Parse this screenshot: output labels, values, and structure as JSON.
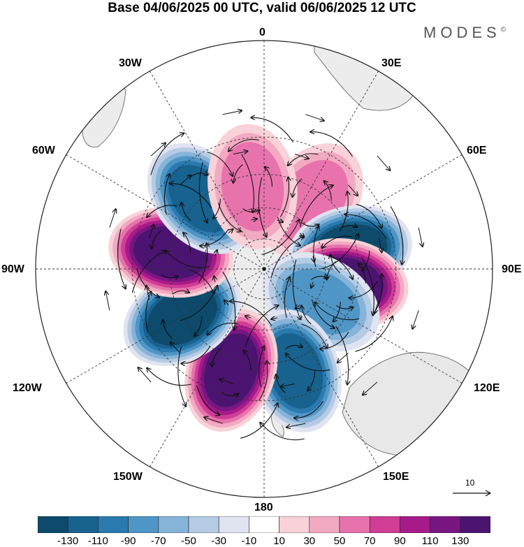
{
  "title": "Base 04/06/2025 00 UTC, valid 06/06/2025 12 UTC",
  "brand": "MODES",
  "brand_mark": "©",
  "longitude_labels": {
    "lon_0": "0",
    "lon_30e": "30E",
    "lon_60e": "60E",
    "lon_90e": "90E",
    "lon_120e": "120E",
    "lon_150e": "150E",
    "lon_180": "180",
    "lon_150w": "150W",
    "lon_120w": "120W",
    "lon_90w": "90W",
    "lon_60w": "60W",
    "lon_30w": "30W"
  },
  "reference_vector": {
    "label": "10"
  },
  "colorbar": {
    "tick_labels": [
      "-130",
      "-110",
      "-90",
      "-70",
      "-50",
      "-30",
      "-10",
      "10",
      "30",
      "50",
      "70",
      "90",
      "110",
      "130"
    ],
    "colors": [
      "#0d4a6b",
      "#17628f",
      "#2a7ab0",
      "#4f96c6",
      "#86b3d8",
      "#b5cbe4",
      "#e0e3f0",
      "#ffffff",
      "#f8d2d8",
      "#f2a9c2",
      "#e873ac",
      "#cf3d95",
      "#a71a89",
      "#781682",
      "#4b1470"
    ]
  },
  "map": {
    "projection": "south polar stereographic",
    "anomaly_centers": [
      {
        "lon": 35,
        "lat": -50,
        "sign": "positive",
        "magnitude": 50
      },
      {
        "lon": 78,
        "lat": -48,
        "sign": "negative",
        "magnitude": 130
      },
      {
        "lon": 100,
        "lat": -50,
        "sign": "positive",
        "magnitude": 130
      },
      {
        "lon": 120,
        "lat": -58,
        "sign": "negative",
        "magnitude": 70
      },
      {
        "lon": 163,
        "lat": -40,
        "sign": "negative",
        "magnitude": 110
      },
      {
        "lon": -162,
        "lat": -40,
        "sign": "positive",
        "magnitude": 130
      },
      {
        "lon": -120,
        "lat": -45,
        "sign": "negative",
        "magnitude": 130
      },
      {
        "lon": -80,
        "lat": -45,
        "sign": "positive",
        "magnitude": 130
      },
      {
        "lon": -42,
        "lat": -45,
        "sign": "negative",
        "magnitude": 110
      },
      {
        "lon": -8,
        "lat": -50,
        "sign": "positive",
        "magnitude": 50
      }
    ]
  }
}
